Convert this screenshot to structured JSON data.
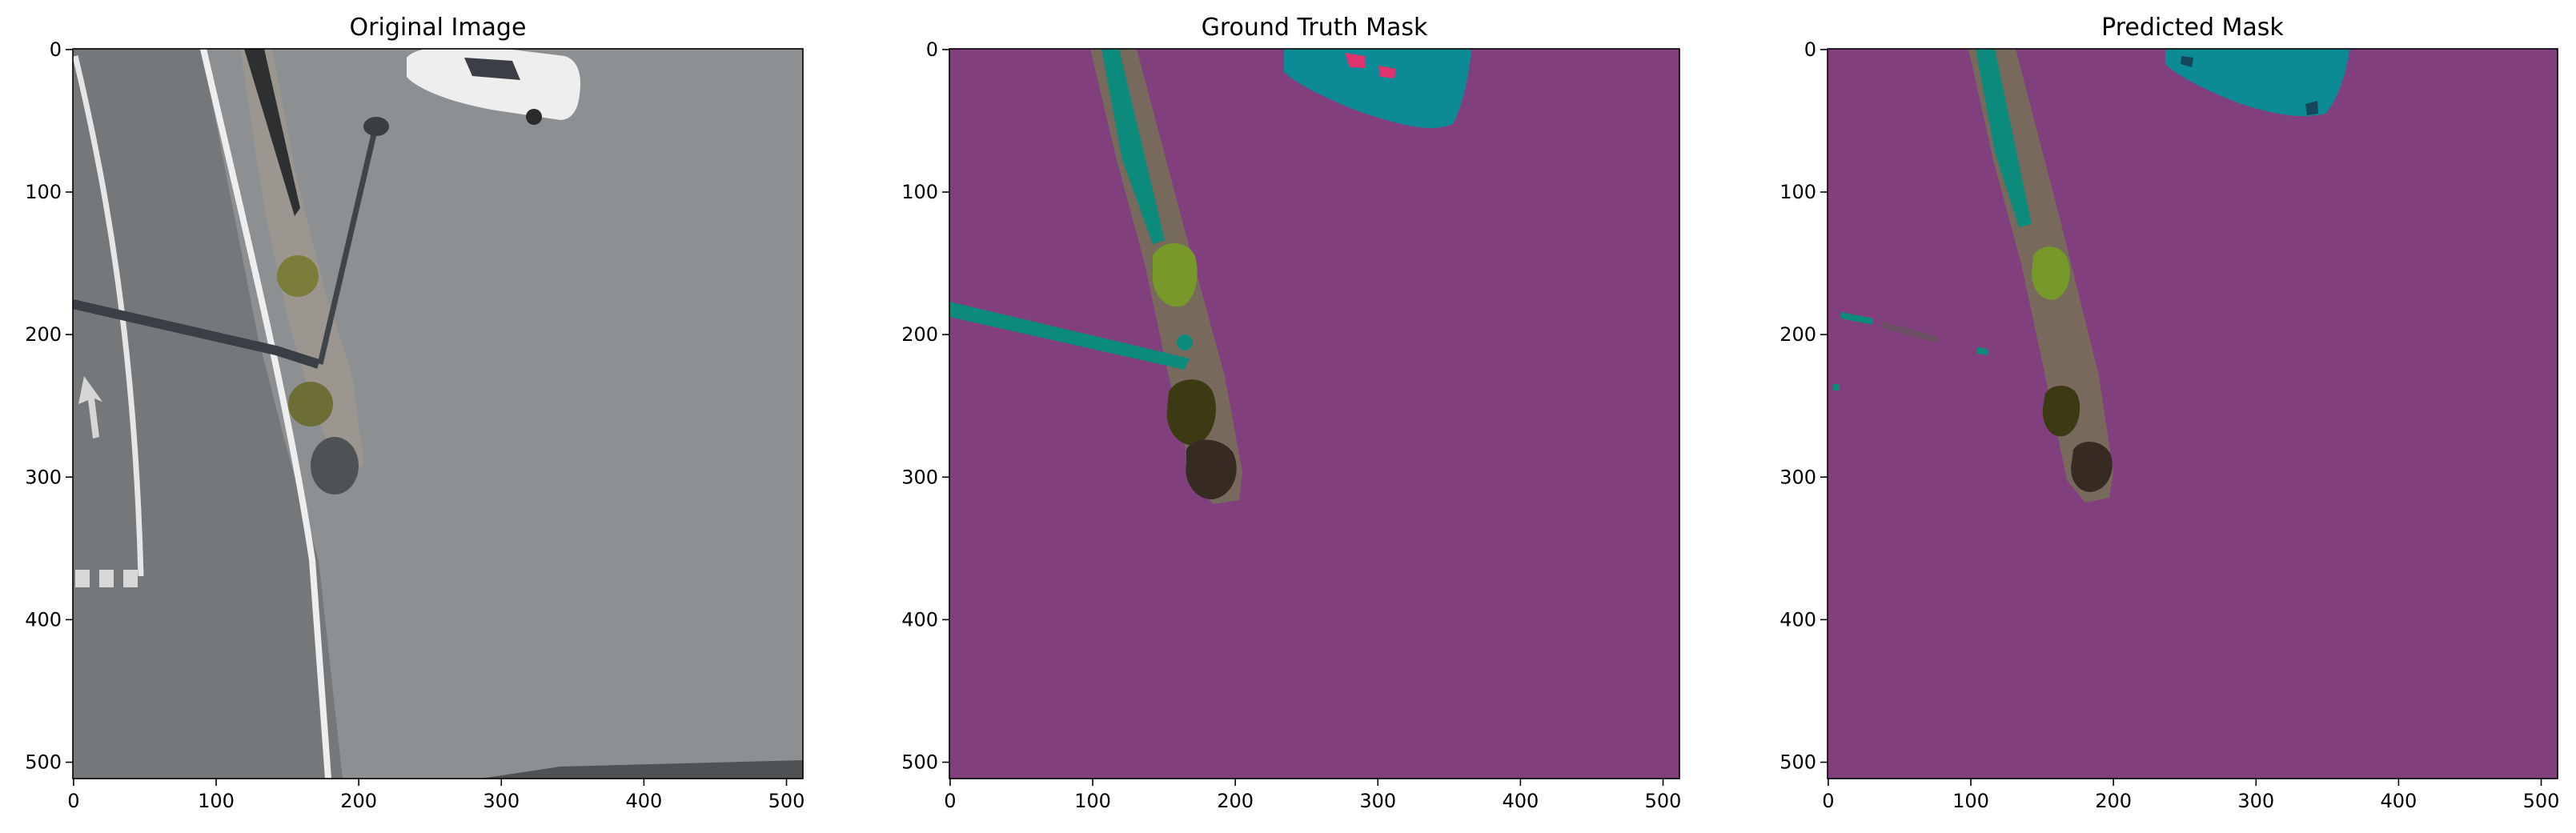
{
  "figure": {
    "panels": [
      {
        "id": "original",
        "title": "Original Image",
        "xticks": [
          "0",
          "100",
          "200",
          "300",
          "400",
          "500"
        ],
        "yticks": [
          "0",
          "100",
          "200",
          "300",
          "400",
          "500"
        ]
      },
      {
        "id": "ground-truth",
        "title": "Ground Truth Mask",
        "xticks": [
          "0",
          "100",
          "200",
          "300",
          "400",
          "500"
        ],
        "yticks": [
          "0",
          "100",
          "200",
          "300",
          "400",
          "500"
        ]
      },
      {
        "id": "predicted",
        "title": "Predicted Mask",
        "xticks": [
          "0",
          "100",
          "200",
          "300",
          "400",
          "500"
        ],
        "yticks": [
          "0",
          "100",
          "200",
          "300",
          "400",
          "500"
        ]
      }
    ],
    "image_extent": [
      0,
      512
    ],
    "colors": {
      "asphalt": "#8b8e90",
      "asphalt_dark": "#6f7274",
      "mask_background": "#813f7e",
      "mask_strip": "#77695c",
      "mask_teal": "#0c8b7d",
      "mask_cyan": "#0c8a96",
      "mask_green": "#73962a",
      "mask_dark_olive": "#3a3a12",
      "mask_dark_brown": "#352b23",
      "mask_pink": "#e0336d"
    }
  }
}
